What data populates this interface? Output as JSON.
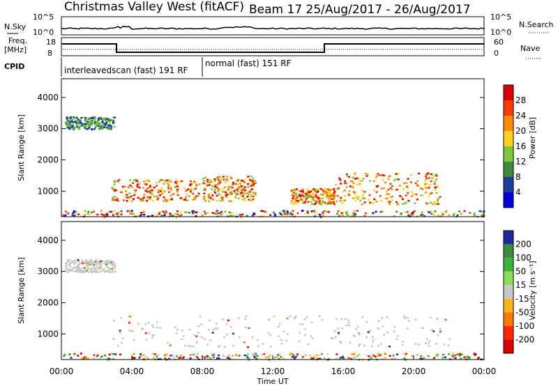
{
  "header": {
    "station": "Christmas Valley West (fitACF)",
    "beam_info": "Beam 17 25/Aug/2017 - 26/Aug/2017"
  },
  "panels": {
    "nsky_label": "N.Sky",
    "nsky_ticks": [
      "10^5",
      "10^0"
    ],
    "nsearch_label": "N.Search",
    "nsearch_ticks": [
      "10^5",
      "10^0"
    ],
    "freq_label_1": "Freq.",
    "freq_label_2": "[MHz]",
    "freq_ticks": [
      "18",
      "8"
    ],
    "nave_label": "Nave",
    "nave_ticks": [
      "60",
      "0"
    ],
    "cpid_label": "CPID",
    "cpid_segments": [
      "interleavedscan (fast) 191 RF",
      "normal (fast) 151 RF"
    ]
  },
  "chart_data": [
    {
      "type": "heatmap",
      "title": "",
      "xlabel": "Time UT",
      "ylabel": "Slant Range [km]",
      "ylim": [
        180,
        4600
      ],
      "yticks": [
        "1000",
        "2000",
        "3000",
        "4000"
      ],
      "xticks": [
        "00:00",
        "04:00",
        "08:00",
        "12:00",
        "16:00",
        "20:00",
        "00:00"
      ],
      "colorbar": {
        "label": "Power [dB]",
        "ticks": [
          "28",
          "24",
          "20",
          "16",
          "12",
          "8",
          "4"
        ],
        "colors": [
          "#d80000",
          "#ff3a00",
          "#ff8c00",
          "#ffd21e",
          "#7cc83c",
          "#3c8c3c",
          "#1e3c9c",
          "#0000d8"
        ]
      },
      "echo_regions": [
        {
          "t": [
            0.2,
            3.0
          ],
          "r": [
            3000,
            3400
          ],
          "level": "weak-mid"
        },
        {
          "t": [
            2.8,
            7.8
          ],
          "r": [
            700,
            1400
          ],
          "level": "strong"
        },
        {
          "t": [
            8.0,
            11.0
          ],
          "r": [
            700,
            1500
          ],
          "level": "strong"
        },
        {
          "t": [
            13.0,
            15.5
          ],
          "r": [
            600,
            1100
          ],
          "level": "strong"
        },
        {
          "t": [
            15.5,
            21.5
          ],
          "r": [
            600,
            1600
          ],
          "level": "strong"
        },
        {
          "t": [
            0.0,
            24.0
          ],
          "r": [
            200,
            400
          ],
          "level": "mixed"
        }
      ]
    },
    {
      "type": "heatmap",
      "title": "",
      "xlabel": "Time UT",
      "ylabel": "Slant Range [km]",
      "ylim": [
        180,
        4600
      ],
      "yticks": [
        "1000",
        "2000",
        "3000",
        "4000"
      ],
      "xticks": [
        "00:00",
        "04:00",
        "08:00",
        "12:00",
        "16:00",
        "20:00",
        "00:00"
      ],
      "colorbar": {
        "label": "Velocity [m s⁻¹]",
        "ticks": [
          "200",
          "100",
          "50",
          "15",
          "-15",
          "-50",
          "-100",
          "-200"
        ],
        "colors": [
          "#1e28a0",
          "#3c8c3c",
          "#3cb43c",
          "#8cdc5a",
          "#c8c8c8",
          "#ffb41e",
          "#ff7800",
          "#ff2800",
          "#d80000"
        ]
      },
      "echo_regions": [
        {
          "t": [
            0.2,
            3.0
          ],
          "r": [
            3000,
            3400
          ],
          "level": "ground-scatter"
        },
        {
          "t": [
            2.8,
            22.0
          ],
          "r": [
            600,
            1600
          ],
          "level": "ground-scatter"
        },
        {
          "t": [
            0.0,
            24.0
          ],
          "r": [
            200,
            400
          ],
          "level": "mixed"
        }
      ]
    }
  ]
}
